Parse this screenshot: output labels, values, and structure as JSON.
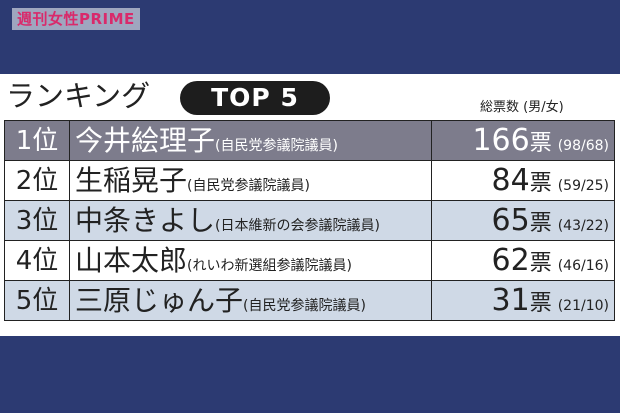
{
  "logo": {
    "text": "週刊女性PRIME"
  },
  "header": {
    "title": "ランキング",
    "badge": "TOP 5",
    "votes_label": "総票数 (男/女)"
  },
  "rows": [
    {
      "rank": "1位",
      "name": "今井絵理子",
      "party": "(自民党参議院議員)",
      "votes": "166",
      "unit": "票",
      "split": "(98/68)"
    },
    {
      "rank": "2位",
      "name": "生稲晃子",
      "party": "(自民党参議院議員)",
      "votes": "84",
      "unit": "票",
      "split": "(59/25)"
    },
    {
      "rank": "3位",
      "name": "中条きよし",
      "party": "(日本維新の会参議院議員)",
      "votes": "65",
      "unit": "票",
      "split": "(43/22)"
    },
    {
      "rank": "4位",
      "name": "山本太郎",
      "party": "(れいわ新選組参議院議員)",
      "votes": "62",
      "unit": "票",
      "split": "(46/16)"
    },
    {
      "rank": "5位",
      "name": "三原じゅん子",
      "party": "(自民党参議院議員)",
      "votes": "31",
      "unit": "票",
      "split": "(21/10)"
    }
  ],
  "colors": {
    "background": "#2c3a72",
    "top_row": "#7d7c8c",
    "alt_row": "#cfd9e6",
    "logo_text": "#d92a6b"
  }
}
